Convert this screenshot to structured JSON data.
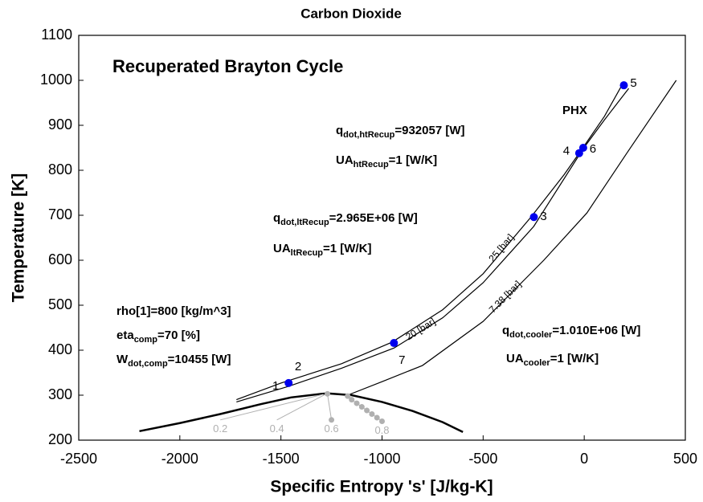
{
  "chart_data": {
    "type": "line",
    "title": "Carbon Dioxide",
    "subtitle": "Recuperated Brayton Cycle",
    "xlabel": "Specific Entropy 's' [J/kg-K]",
    "ylabel": "Temperature [K]",
    "xlim": [
      -2500,
      500
    ],
    "ylim": [
      200,
      1100
    ],
    "xticks": [
      -2500,
      -2000,
      -1500,
      -1000,
      -500,
      0,
      500
    ],
    "yticks": [
      200,
      300,
      400,
      500,
      600,
      700,
      800,
      900,
      1000,
      1100
    ],
    "series": [
      {
        "name": "25 [bar]",
        "color": "#000000",
        "linewidth": 1.2,
        "x": [
          -1720,
          -1500,
          -1200,
          -950,
          -700,
          -500,
          -265,
          -100,
          -25,
          100,
          185
        ],
        "values": [
          290,
          327,
          370,
          418,
          490,
          570,
          695,
          790,
          838,
          920,
          988
        ]
      },
      {
        "name": "20 [bar]",
        "color": "#000000",
        "linewidth": 1.2,
        "x": [
          -1720,
          -1460,
          -1200,
          -940,
          -700,
          -500,
          -250,
          -5,
          100,
          220
        ],
        "values": [
          285,
          320,
          360,
          405,
          472,
          550,
          675,
          848,
          912,
          982
        ]
      },
      {
        "name": "7.38 [bar]",
        "color": "#000000",
        "linewidth": 1.2,
        "x": [
          -1170,
          -1000,
          -800,
          -500,
          -200,
          13,
          212,
          455
        ],
        "values": [
          300,
          330,
          366,
          464,
          600,
          705,
          839,
          1000
        ]
      },
      {
        "color": "#000000",
        "linewidth": 2.5,
        "x": [
          -2200,
          -2000,
          -1800,
          -1600,
          -1450,
          -1300,
          -1270,
          -1150,
          -1000,
          -850,
          -700,
          -600
        ],
        "values": [
          220,
          238,
          258,
          280,
          295,
          303,
          304,
          300,
          285,
          265,
          240,
          218
        ]
      },
      {
        "quality": 0.2,
        "color": "#b0b0b0",
        "linewidth": 1,
        "x": [
          -1290,
          -1800
        ],
        "values": [
          302,
          245
        ]
      },
      {
        "quality": 0.4,
        "color": "#b0b0b0",
        "linewidth": 1,
        "x": [
          -1280,
          -1520
        ],
        "values": [
          302,
          245
        ]
      },
      {
        "quality": 0.6,
        "color": "#b0b0b0",
        "linewidth": 1,
        "markers": true,
        "x": [
          -1270,
          -1250
        ],
        "values": [
          303,
          245
        ]
      },
      {
        "quality": 0.8,
        "color": "#b0b0b0",
        "linewidth": 1,
        "markers": true,
        "x": [
          -1170,
          -1150,
          -1125,
          -1100,
          -1075,
          -1050,
          -1025,
          -1000
        ],
        "values": [
          298,
          290,
          282,
          274,
          266,
          258,
          250,
          242
        ]
      }
    ],
    "points": {
      "color": "#0000ee",
      "labels": [
        "1",
        "2",
        "3",
        "4",
        "5",
        "6",
        "7"
      ],
      "x": [
        -1462,
        -1455,
        -249,
        -25,
        196,
        -5,
        -941
      ],
      "values": [
        327,
        330,
        696,
        838,
        989,
        850,
        416
      ]
    },
    "annotations": [
      [
        {
          "text": "q"
        },
        {
          "sub": "dot,htRecup"
        },
        {
          "text": "=932057 [W]"
        }
      ],
      [
        {
          "text": "UA"
        },
        {
          "sub": "htRecup"
        },
        {
          "text": "=1 [W/K]"
        }
      ],
      [
        {
          "text": "q"
        },
        {
          "sub": "dot,ltRecup"
        },
        {
          "text": "=2.965E+06 [W]"
        }
      ],
      [
        {
          "text": "UA"
        },
        {
          "sub": "ltRecup"
        },
        {
          "text": "=1 [W/K]"
        }
      ],
      [
        {
          "text": "rho[1]=800 [kg/m^3]"
        }
      ],
      [
        {
          "text": "eta"
        },
        {
          "sub": "comp"
        },
        {
          "text": "=70 [%]"
        }
      ],
      [
        {
          "text": "W"
        },
        {
          "sub": "dot,comp"
        },
        {
          "text": "=10455 [W]"
        }
      ],
      [
        {
          "text": "q"
        },
        {
          "sub": "dot,cooler"
        },
        {
          "text": "=1.010E+06 [W]"
        }
      ],
      [
        {
          "text": "UA"
        },
        {
          "sub": "cooler"
        },
        {
          "text": "=1 [W/K]"
        }
      ],
      [
        {
          "text": "PHX"
        }
      ]
    ]
  }
}
